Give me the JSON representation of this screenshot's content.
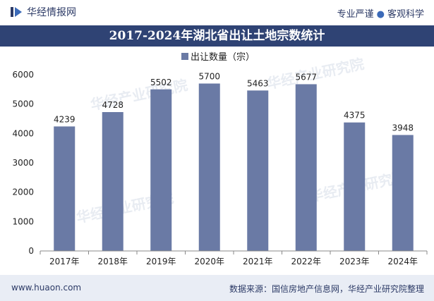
{
  "header": {
    "brand_name": "华经情报网",
    "slogan_left": "专业严谨",
    "slogan_right": "客观科学"
  },
  "footer": {
    "website": "www.huaon.com",
    "source": "数据来源：国信房地产信息网，华经产业研究院整理"
  },
  "watermark": "华经产业研究院",
  "colors": {
    "title_bar": "#2f4374",
    "bar": "#6a7aa5",
    "footer_bg": "#e9edf5"
  },
  "chart_data": {
    "type": "bar",
    "title": "2017-2024年湖北省出让土地宗数统计",
    "categories": [
      "2017年",
      "2018年",
      "2019年",
      "2020年",
      "2021年",
      "2022年",
      "2023年",
      "2024年"
    ],
    "series": [
      {
        "name": "出让数量（宗）",
        "values": [
          4239,
          4728,
          5502,
          5700,
          5463,
          5677,
          4375,
          3948
        ]
      }
    ],
    "ylim": [
      0,
      6000
    ],
    "yticks": [
      0,
      1000,
      2000,
      3000,
      4000,
      5000,
      6000
    ],
    "grid": false,
    "legend_position": "top-center"
  }
}
